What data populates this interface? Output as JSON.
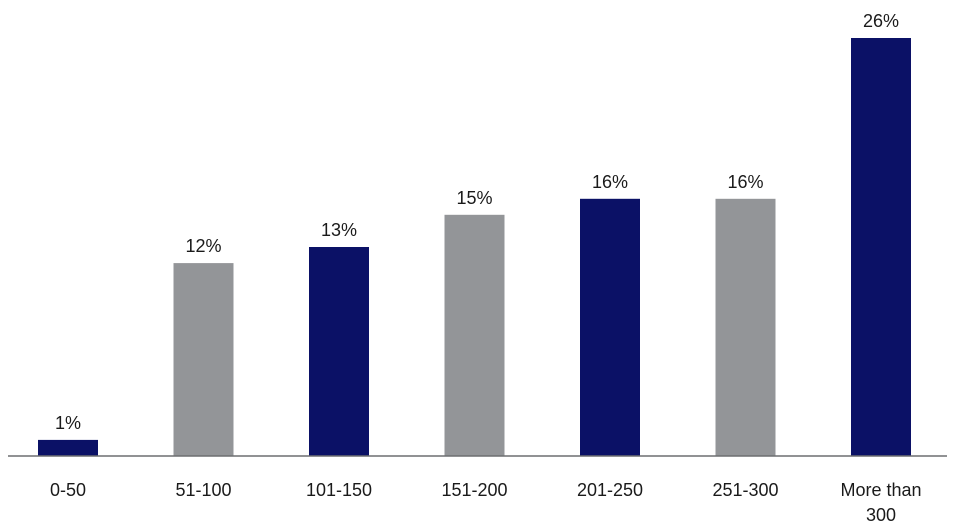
{
  "chart_data": {
    "type": "bar",
    "categories": [
      "0-50",
      "51-100",
      "101-150",
      "151-200",
      "201-250",
      "251-300",
      "More than 300"
    ],
    "category_lines": [
      [
        "0-50"
      ],
      [
        "51-100"
      ],
      [
        "101-150"
      ],
      [
        "151-200"
      ],
      [
        "201-250"
      ],
      [
        "251-300"
      ],
      [
        "More than",
        "300"
      ]
    ],
    "values": [
      1,
      12,
      13,
      15,
      16,
      16,
      26
    ],
    "value_labels": [
      "1%",
      "12%",
      "13%",
      "15%",
      "16%",
      "16%",
      "26%"
    ],
    "bar_colors": [
      "#0b1166",
      "#939598",
      "#0b1166",
      "#939598",
      "#0b1166",
      "#939598",
      "#0b1166"
    ],
    "title": "",
    "xlabel": "",
    "ylabel": "",
    "ylim": [
      0,
      26
    ],
    "grid": false,
    "legend": "none"
  },
  "colors": {
    "navy": "#0b1166",
    "gray": "#939598",
    "axis": "#6d6e71"
  }
}
